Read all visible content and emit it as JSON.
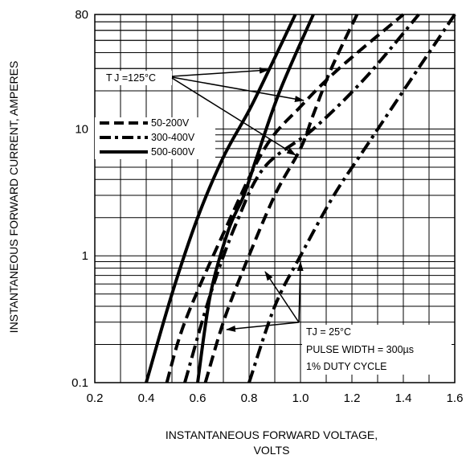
{
  "chart_data": {
    "type": "line",
    "xlabel_lines": [
      "INSTANTANEOUS FORWARD VOLTAGE,",
      "VOLTS"
    ],
    "ylabel": "INSTANTANEOUS FORWARD CURRENT, AMPERES",
    "xlim": [
      0.2,
      1.6
    ],
    "ylim": [
      0.1,
      80
    ],
    "y_scale": "log",
    "grid": true,
    "x_ticks": [
      "0.2",
      "0.4",
      "0.6",
      "0.8",
      "1.0",
      "1.2",
      "1.4",
      "1.6"
    ],
    "y_ticks": [
      "0.1",
      "1",
      "10",
      "80"
    ],
    "legend_position": "left",
    "legend": [
      {
        "label": "50-200V",
        "style": "dashed"
      },
      {
        "label": "300-400V",
        "style": "dashdot"
      },
      {
        "label": "500-600V",
        "style": "solid"
      }
    ],
    "series": [
      {
        "name": "50-200V",
        "condition": "125C",
        "style": "dashed",
        "points": [
          [
            0.48,
            0.1
          ],
          [
            0.55,
            0.3
          ],
          [
            0.7,
            1.5
          ],
          [
            0.86,
            7
          ],
          [
            1.0,
            15
          ],
          [
            1.15,
            30
          ],
          [
            1.4,
            80
          ]
        ]
      },
      {
        "name": "300-400V",
        "condition": "125C",
        "style": "dashdot",
        "points": [
          [
            0.55,
            0.1
          ],
          [
            0.65,
            0.5
          ],
          [
            0.75,
            1.8
          ],
          [
            0.86,
            5
          ],
          [
            1.05,
            10
          ],
          [
            1.25,
            25
          ],
          [
            1.46,
            80
          ]
        ]
      },
      {
        "name": "500-600V",
        "condition": "125C",
        "style": "solid",
        "points": [
          [
            0.4,
            0.1
          ],
          [
            0.5,
            0.5
          ],
          [
            0.6,
            2
          ],
          [
            0.7,
            6
          ],
          [
            0.8,
            14
          ],
          [
            0.88,
            30
          ],
          [
            0.98,
            80
          ]
        ]
      },
      {
        "name": "50-200V",
        "condition": "25C",
        "style": "dashed",
        "points": [
          [
            0.63,
            0.1
          ],
          [
            0.7,
            0.3
          ],
          [
            0.78,
            0.8
          ],
          [
            0.9,
            3
          ],
          [
            1.0,
            7
          ],
          [
            1.05,
            13
          ],
          [
            1.12,
            30
          ],
          [
            1.22,
            80
          ]
        ]
      },
      {
        "name": "300-400V",
        "condition": "25C",
        "style": "dashdot",
        "points": [
          [
            0.8,
            0.1
          ],
          [
            0.9,
            0.4
          ],
          [
            1.0,
            1
          ],
          [
            1.13,
            3
          ],
          [
            1.25,
            7
          ],
          [
            1.4,
            20
          ],
          [
            1.6,
            80
          ]
        ]
      },
      {
        "name": "500-600V",
        "condition": "25C",
        "style": "solid",
        "points": [
          [
            0.6,
            0.1
          ],
          [
            0.65,
            0.5
          ],
          [
            0.72,
            1.6
          ],
          [
            0.78,
            3
          ],
          [
            0.83,
            6
          ],
          [
            0.92,
            20
          ],
          [
            1.05,
            80
          ]
        ]
      }
    ],
    "annotations": {
      "tj125": "T J =125°C",
      "tj25_lines": [
        "TJ = 25°C",
        "PULSE WIDTH = 300µs",
        "1% DUTY CYCLE"
      ]
    }
  },
  "colors": {
    "line": "#000000",
    "grid": "#000000",
    "background": "#ffffff"
  }
}
